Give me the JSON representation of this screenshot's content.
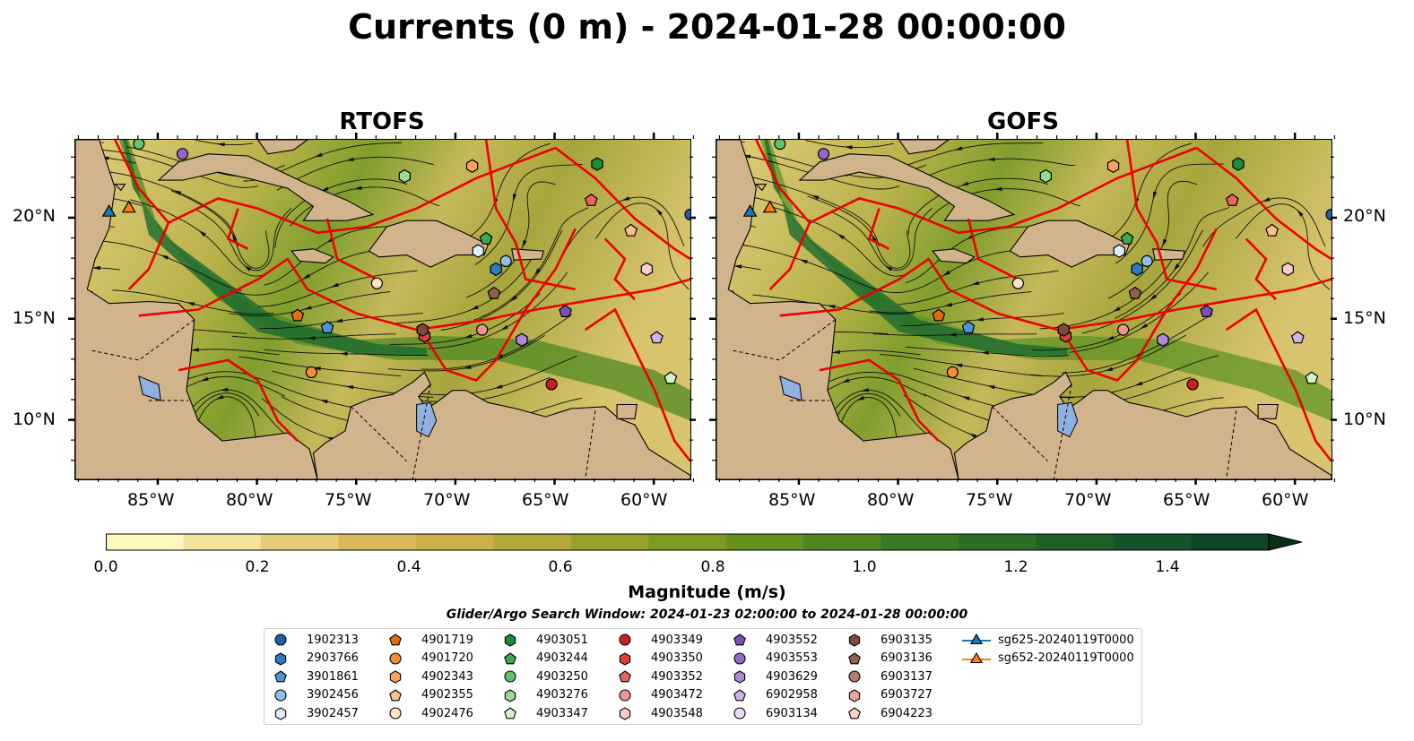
{
  "title": "Currents (0 m) - 2024-01-28 00:00:00",
  "maps": [
    {
      "title": "RTOFS"
    },
    {
      "title": "GOFS"
    }
  ],
  "lon_labels": [
    "85°W",
    "80°W",
    "75°W",
    "70°W",
    "65°W",
    "60°W"
  ],
  "lat_labels": [
    "20°N",
    "15°N",
    "10°N"
  ],
  "colorbar": {
    "label": "Magnitude (m/s)",
    "ticks": [
      "0.0",
      "0.2",
      "0.4",
      "0.6",
      "0.8",
      "1.0",
      "1.2",
      "1.4"
    ],
    "range": [
      0,
      1.5
    ],
    "colors": [
      "#fff7bc",
      "#f2e29a",
      "#e6cc78",
      "#d9b85a",
      "#cdb24a",
      "#b5a83a",
      "#97a22c",
      "#7f9a22",
      "#66911f",
      "#4f861f",
      "#3a7a22",
      "#2a6e26",
      "#1d6129",
      "#14542a",
      "#0f4625",
      "#0c3a1e",
      "#0a2f18"
    ]
  },
  "search_window": "Glider/Argo Search Window: 2024-01-23 02:00:00 to 2024-01-28 00:00:00",
  "legend": [
    {
      "label": "1902313",
      "shape": "circle",
      "color": "#1f5fa8"
    },
    {
      "label": "2903766",
      "shape": "hexagon",
      "color": "#2c7bbf"
    },
    {
      "label": "3901861",
      "shape": "pentagon",
      "color": "#4a97d4"
    },
    {
      "label": "3902456",
      "shape": "circle",
      "color": "#8ec0ea"
    },
    {
      "label": "3902457",
      "shape": "hexagon",
      "color": "#dfefff"
    },
    {
      "label": "4901719",
      "shape": "pentagon",
      "color": "#e56c0c"
    },
    {
      "label": "4901720",
      "shape": "circle",
      "color": "#f28c36"
    },
    {
      "label": "4902343",
      "shape": "hexagon",
      "color": "#f7a55e"
    },
    {
      "label": "4902355",
      "shape": "pentagon",
      "color": "#f9c08c"
    },
    {
      "label": "4902476",
      "shape": "circle",
      "color": "#fde2c6"
    },
    {
      "label": "4903051",
      "shape": "hexagon",
      "color": "#1f8a3a"
    },
    {
      "label": "4903244",
      "shape": "pentagon",
      "color": "#3ea84f"
    },
    {
      "label": "4903250",
      "shape": "circle",
      "color": "#62c46a"
    },
    {
      "label": "4903276",
      "shape": "hexagon",
      "color": "#98db8f"
    },
    {
      "label": "4903347",
      "shape": "pentagon",
      "color": "#d2f4c7"
    },
    {
      "label": "4903349",
      "shape": "circle",
      "color": "#cc1f1f"
    },
    {
      "label": "4903350",
      "shape": "hexagon",
      "color": "#dd3e3e"
    },
    {
      "label": "4903352",
      "shape": "pentagon",
      "color": "#e66565"
    },
    {
      "label": "4903472",
      "shape": "circle",
      "color": "#ef9494"
    },
    {
      "label": "4903548",
      "shape": "hexagon",
      "color": "#f9cccc"
    },
    {
      "label": "4903552",
      "shape": "pentagon",
      "color": "#7b4fb8"
    },
    {
      "label": "4903553",
      "shape": "circle",
      "color": "#9467c9"
    },
    {
      "label": "4903629",
      "shape": "hexagon",
      "color": "#ae8ad8"
    },
    {
      "label": "6902958",
      "shape": "pentagon",
      "color": "#cdb3ea"
    },
    {
      "label": "6903134",
      "shape": "circle",
      "color": "#ead9f7"
    },
    {
      "label": "6903135",
      "shape": "hexagon",
      "color": "#7a4a3c"
    },
    {
      "label": "6903136",
      "shape": "pentagon",
      "color": "#93604f"
    },
    {
      "label": "6903137",
      "shape": "circle",
      "color": "#b07f6d"
    },
    {
      "label": "6903727",
      "shape": "hexagon",
      "color": "#e8a794"
    },
    {
      "label": "6904223",
      "shape": "pentagon",
      "color": "#fbd3c5"
    },
    {
      "label": "sg625-20240119T0000",
      "shape": "triangle-line",
      "color": "#1f77b4"
    },
    {
      "label": "sg652-20240119T0000",
      "shape": "triangle-line",
      "color": "#ff7f0e"
    }
  ]
}
